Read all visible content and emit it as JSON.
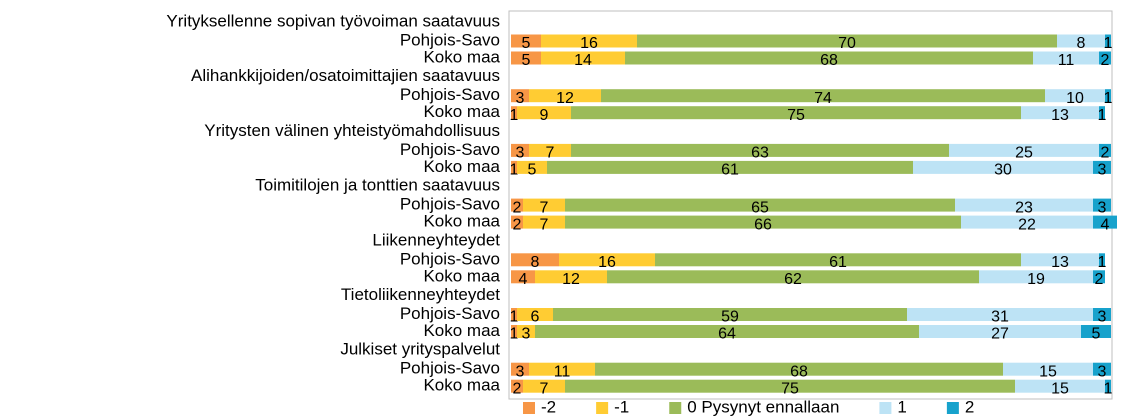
{
  "chart_data": {
    "type": "stacked_bar_horizontal",
    "groups": [
      "Yrityksellenne sopivan työvoiman saatavuus",
      "Alihankkijoiden/osatoimittajien saatavuus",
      "Yritysten välinen yhteistyömahdollisuus",
      "Toimitilojen ja tonttien saatavuus",
      "Liikenneyhteydet",
      "Tietoliikenneyhteydet",
      "Julkiset yrityspalvelut"
    ],
    "categories": [
      "Pohjois-Savo",
      "Koko maa",
      "Pohjois-Savo",
      "Koko maa",
      "Pohjois-Savo",
      "Koko maa",
      "Pohjois-Savo",
      "Koko maa",
      "Pohjois-Savo",
      "Koko maa",
      "Pohjois-Savo",
      "Koko maa",
      "Pohjois-Savo",
      "Koko maa"
    ],
    "series": [
      {
        "name": "-2",
        "color": "#f79646",
        "values": [
          5,
          5,
          3,
          1,
          3,
          1,
          2,
          2,
          8,
          4,
          1,
          1,
          3,
          2
        ]
      },
      {
        "name": "-1",
        "color": "#ffcc33",
        "values": [
          16,
          14,
          12,
          9,
          7,
          5,
          7,
          7,
          16,
          12,
          6,
          3,
          11,
          7
        ]
      },
      {
        "name": "0  Pysynyt ennallaan",
        "color": "#9bbb59",
        "values": [
          70,
          68,
          74,
          75,
          63,
          61,
          65,
          66,
          61,
          62,
          59,
          64,
          68,
          75
        ]
      },
      {
        "name": "1",
        "color": "#bde3f5",
        "values": [
          8,
          11,
          10,
          13,
          25,
          30,
          23,
          22,
          13,
          19,
          31,
          27,
          15,
          15
        ]
      },
      {
        "name": "2",
        "color": "#17a2cc",
        "values": [
          1,
          2,
          1,
          1,
          2,
          3,
          3,
          4,
          1,
          2,
          3,
          5,
          3,
          1
        ]
      }
    ],
    "xlim": [
      0,
      100
    ]
  }
}
